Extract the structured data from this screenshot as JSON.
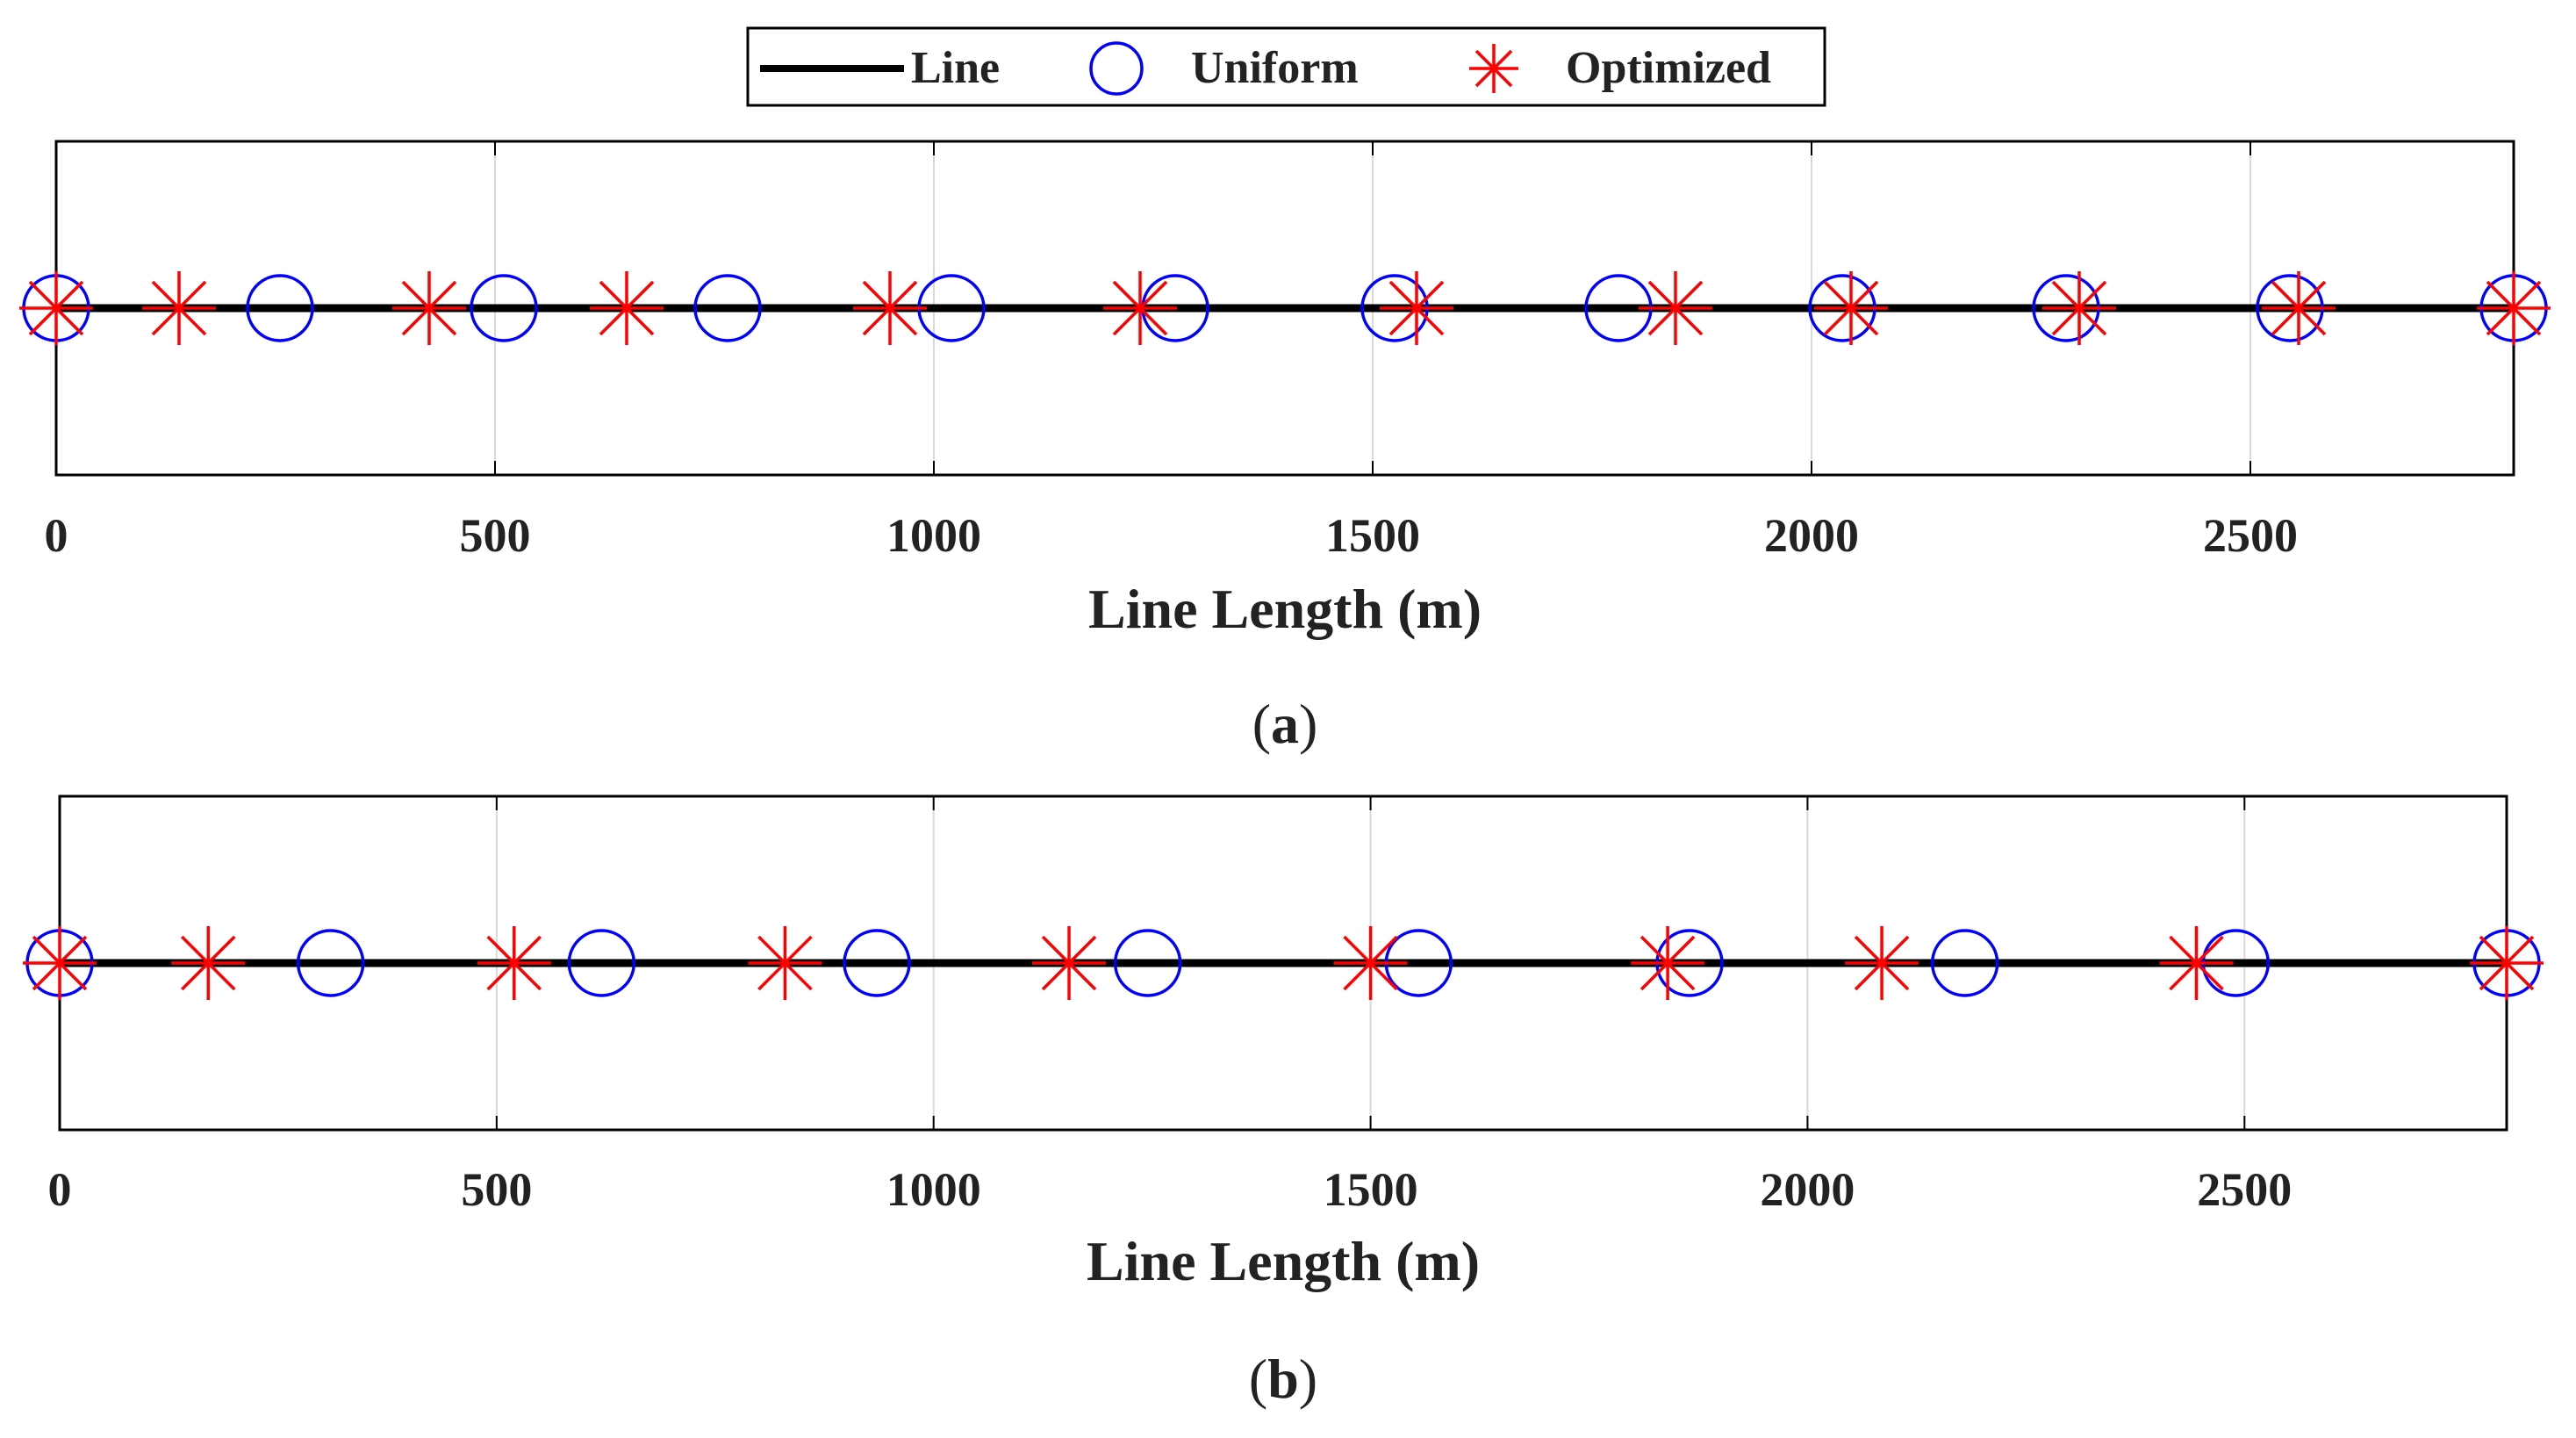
{
  "legend": {
    "items": [
      {
        "label": "Line",
        "marker": "line"
      },
      {
        "label": "Uniform",
        "marker": "circle"
      },
      {
        "label": "Optimized",
        "marker": "asterisk"
      }
    ]
  },
  "colors": {
    "line": "#000000",
    "uniform": "#0000ff",
    "optimized": "#ff0000",
    "grid": "#d9d9d9",
    "text": "#222222"
  },
  "chart_data": [
    {
      "type": "scatter",
      "panel_label": "(a)",
      "caption_letter": "a",
      "xlabel": "Line Length (m)",
      "ylabel": "",
      "xlim": [
        0,
        2800
      ],
      "xticks": [
        0,
        500,
        1000,
        1500,
        2000,
        2500
      ],
      "grid": true,
      "line": {
        "name": "Line",
        "x": [
          0,
          2800
        ]
      },
      "series": [
        {
          "name": "Uniform",
          "marker": "circle",
          "values": [
            0,
            255,
            510,
            765,
            1020,
            1275,
            1525,
            1780,
            2035,
            2290,
            2545,
            2800
          ]
        },
        {
          "name": "Optimized",
          "marker": "asterisk",
          "values": [
            0,
            140,
            425,
            650,
            950,
            1235,
            1550,
            1845,
            2045,
            2305,
            2555,
            2800
          ]
        }
      ]
    },
    {
      "type": "scatter",
      "panel_label": "(b)",
      "caption_letter": "b",
      "xlabel": "Line Length (m)",
      "ylabel": "",
      "xlim": [
        0,
        2800
      ],
      "xticks": [
        0,
        500,
        1000,
        1500,
        2000,
        2500
      ],
      "grid": true,
      "line": {
        "name": "Line",
        "x": [
          0,
          2800
        ]
      },
      "series": [
        {
          "name": "Uniform",
          "marker": "circle",
          "values": [
            0,
            310,
            620,
            935,
            1245,
            1555,
            1865,
            2180,
            2490,
            2800
          ]
        },
        {
          "name": "Optimized",
          "marker": "asterisk",
          "values": [
            0,
            170,
            520,
            830,
            1155,
            1500,
            1840,
            2085,
            2445,
            2800
          ]
        }
      ]
    }
  ]
}
